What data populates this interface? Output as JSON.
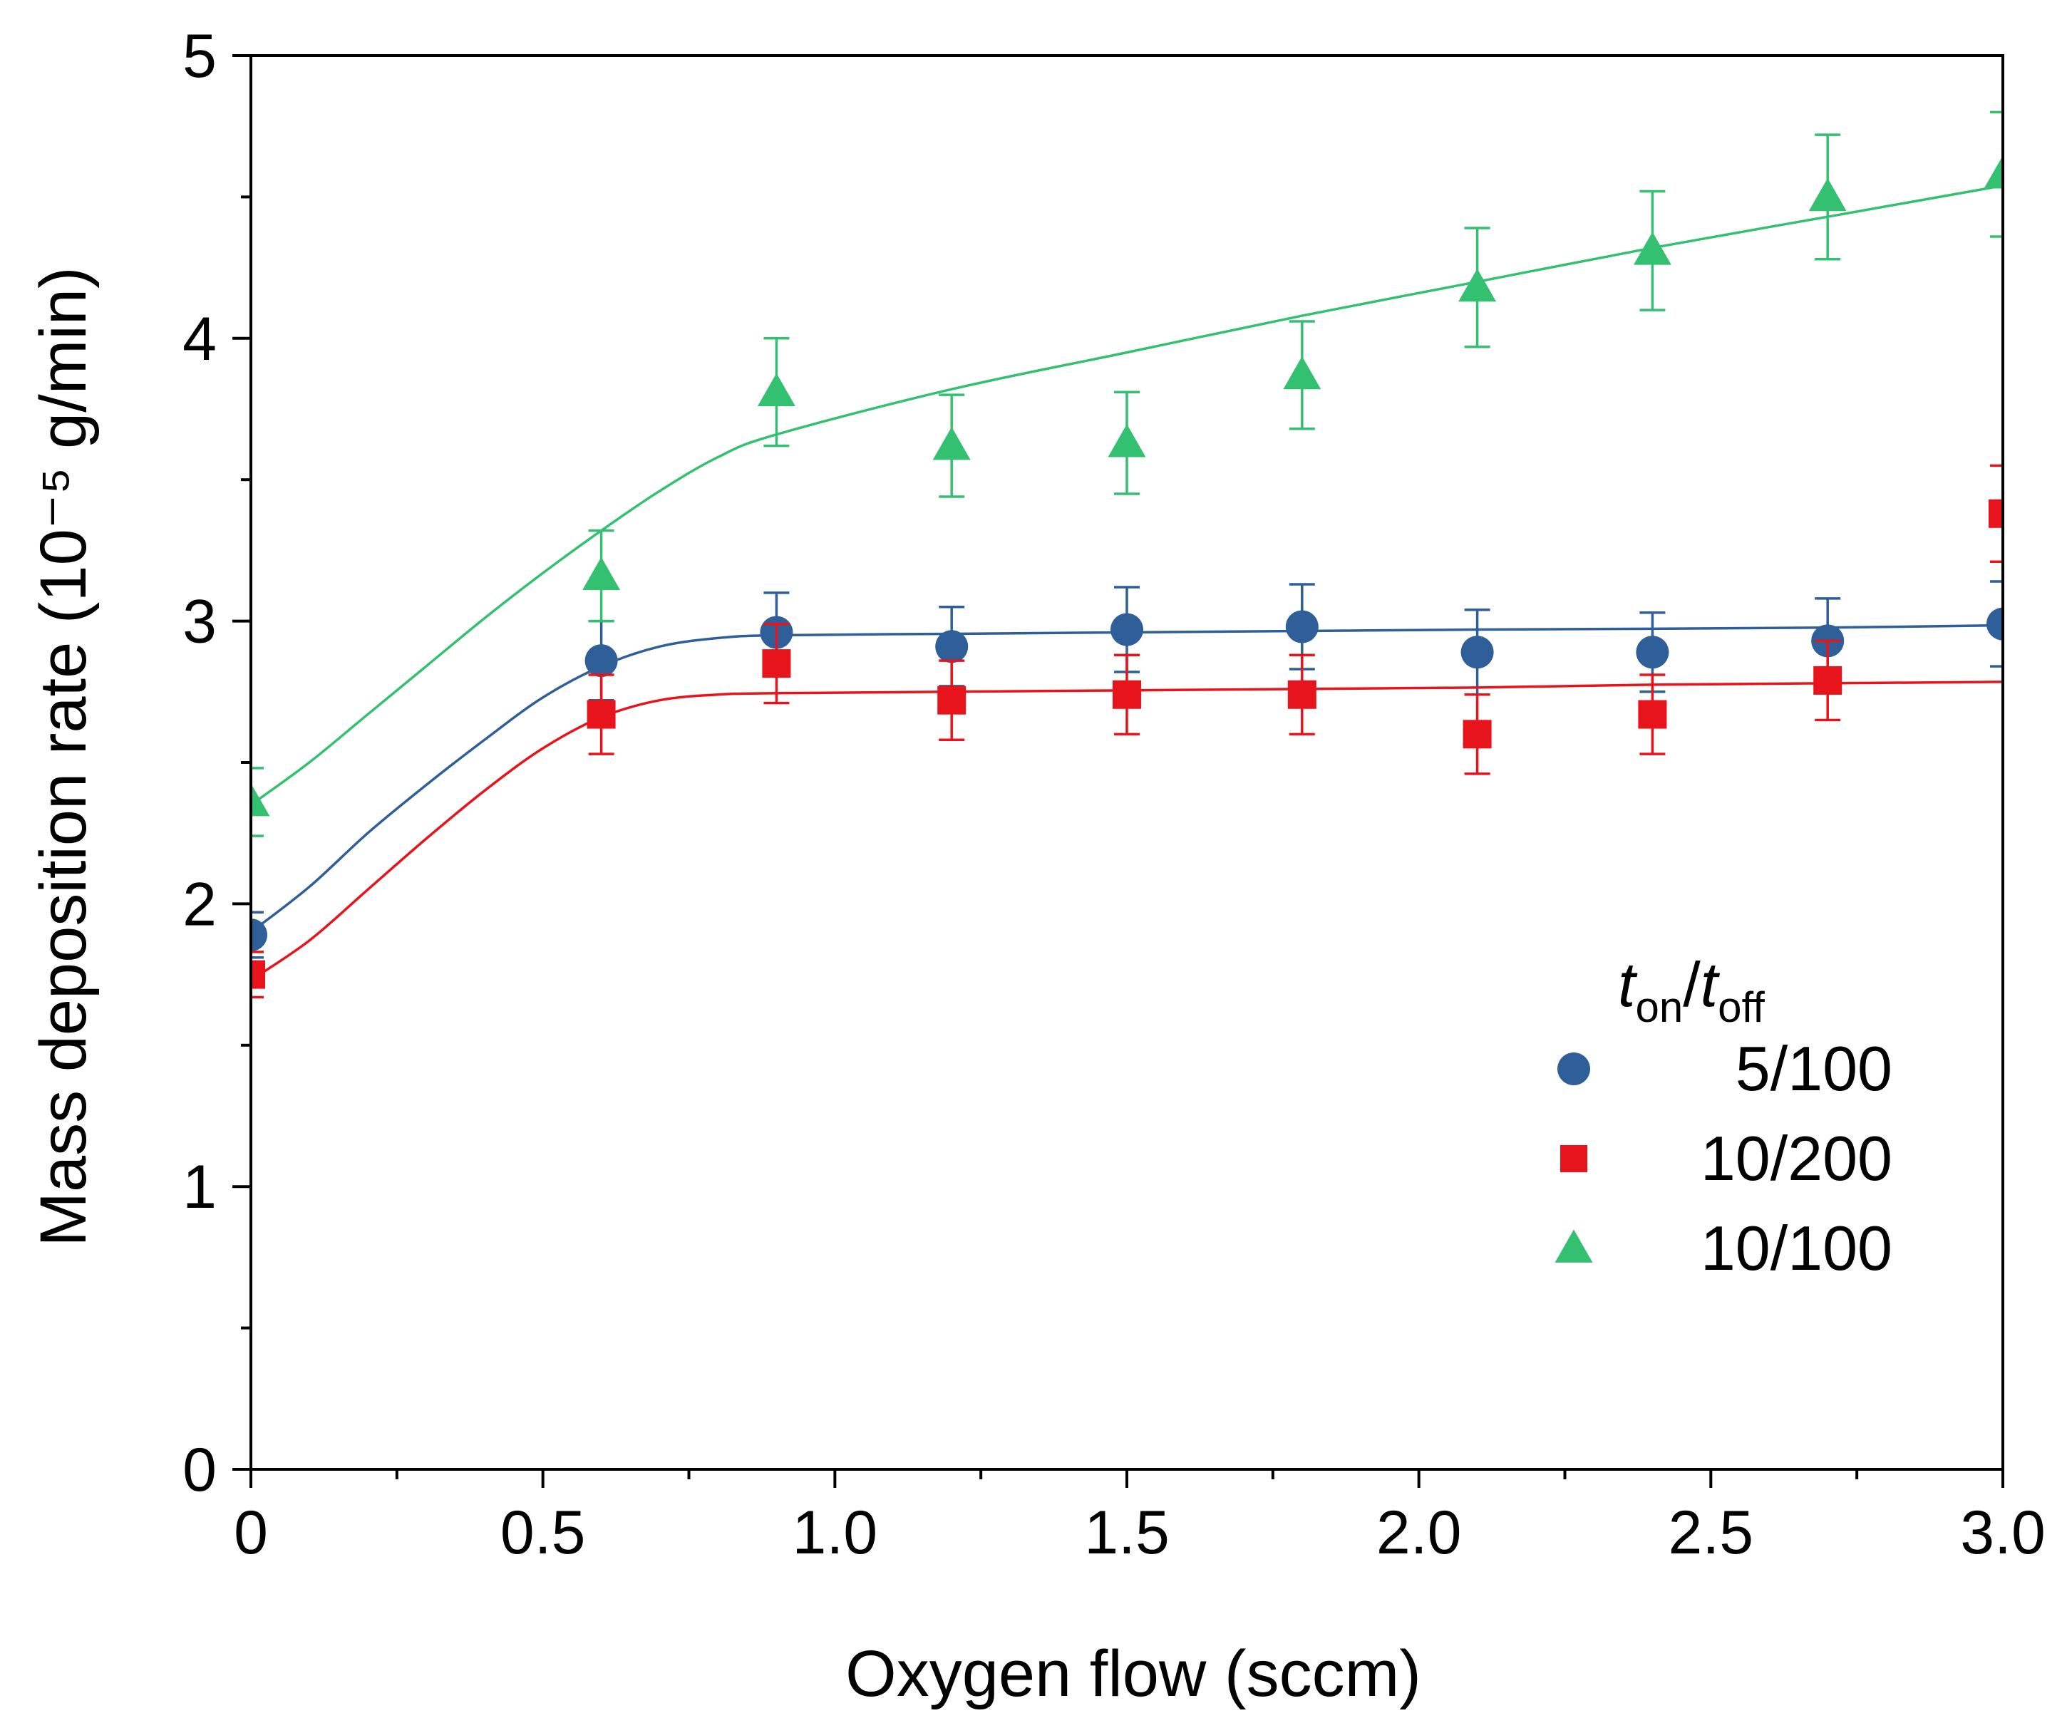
{
  "chart_data": {
    "type": "scatter",
    "title": "",
    "xlabel": "Oxygen flow (sccm)",
    "ylabel": "Mass deposition rate (10⁻⁵ g/min)",
    "xlim": [
      0,
      3.0
    ],
    "ylim": [
      0,
      5
    ],
    "x_ticks": [
      "0",
      "0.5",
      "1.0",
      "1.5",
      "2.0",
      "2.5",
      "3.0"
    ],
    "y_ticks": [
      "0",
      "1",
      "2",
      "3",
      "4",
      "5"
    ],
    "grid": false,
    "legend": {
      "title_t1": "t",
      "title_sub1": "on",
      "title_slash": "/",
      "title_t2": "t",
      "title_sub2": "off",
      "placement": "lower-right"
    },
    "series": [
      {
        "name": "5/100",
        "marker": "circle",
        "color": "#2f5f98",
        "x": [
          0,
          0.6,
          0.9,
          1.2,
          1.5,
          1.8,
          2.1,
          2.4,
          2.7,
          3.0
        ],
        "y": [
          1.89,
          2.86,
          2.96,
          2.91,
          2.97,
          2.98,
          2.89,
          2.89,
          2.93,
          2.99
        ],
        "err": [
          0.08,
          0.14,
          0.14,
          0.14,
          0.15,
          0.15,
          0.15,
          0.14,
          0.15,
          0.15
        ],
        "fit_x": [
          0,
          0.1,
          0.2,
          0.3,
          0.4,
          0.5,
          0.6,
          0.7,
          0.8,
          0.9,
          1.2,
          1.5,
          1.8,
          2.1,
          2.4,
          2.7,
          3.0
        ],
        "fit_y": [
          1.9,
          2.06,
          2.25,
          2.42,
          2.58,
          2.73,
          2.84,
          2.91,
          2.94,
          2.95,
          2.955,
          2.96,
          2.965,
          2.97,
          2.973,
          2.977,
          2.985
        ]
      },
      {
        "name": "10/200",
        "marker": "square",
        "color": "#e8141c",
        "x": [
          0,
          0.6,
          0.9,
          1.2,
          1.5,
          1.8,
          2.1,
          2.4,
          2.7,
          3.0
        ],
        "y": [
          1.75,
          2.67,
          2.85,
          2.72,
          2.74,
          2.74,
          2.6,
          2.67,
          2.79,
          3.38
        ],
        "err": [
          0.08,
          0.14,
          0.14,
          0.14,
          0.14,
          0.14,
          0.14,
          0.14,
          0.14,
          0.17
        ],
        "fit_x": [
          0,
          0.1,
          0.2,
          0.3,
          0.4,
          0.5,
          0.6,
          0.7,
          0.8,
          0.9,
          1.2,
          1.5,
          1.8,
          2.1,
          2.4,
          2.7,
          3.0
        ],
        "fit_y": [
          1.73,
          1.87,
          2.05,
          2.23,
          2.4,
          2.55,
          2.66,
          2.72,
          2.74,
          2.745,
          2.75,
          2.755,
          2.76,
          2.765,
          2.775,
          2.78,
          2.785
        ]
      },
      {
        "name": "10/100",
        "marker": "triangle",
        "color": "#34c071",
        "x": [
          0,
          0.6,
          0.9,
          1.2,
          1.5,
          1.8,
          2.1,
          2.4,
          2.7,
          3.0
        ],
        "y": [
          2.36,
          3.16,
          3.81,
          3.62,
          3.63,
          3.87,
          4.18,
          4.31,
          4.5,
          4.58
        ],
        "err": [
          0.12,
          0.16,
          0.19,
          0.18,
          0.18,
          0.19,
          0.21,
          0.21,
          0.22,
          0.22
        ],
        "fit_x": [
          0,
          0.1,
          0.2,
          0.3,
          0.4,
          0.5,
          0.6,
          0.7,
          0.8,
          0.9,
          1.2,
          1.5,
          1.8,
          2.1,
          2.4,
          2.7,
          3.0
        ],
        "fit_y": [
          2.35,
          2.5,
          2.67,
          2.84,
          3.01,
          3.17,
          3.32,
          3.46,
          3.58,
          3.66,
          3.82,
          3.95,
          4.08,
          4.2,
          4.32,
          4.43,
          4.54
        ]
      }
    ]
  }
}
